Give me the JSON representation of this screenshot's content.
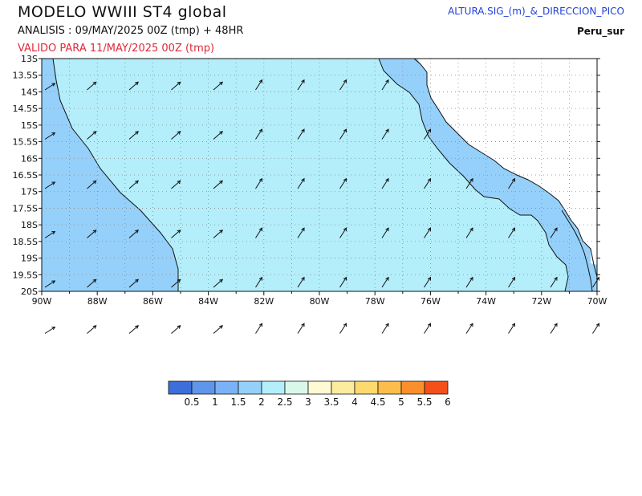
{
  "header": {
    "title": "MODELO  WWIII  ST4  global",
    "analysis": "ANALISIS : 09/MAY/2025 00Z   (tmp) + 48HR",
    "valid": "VALIDO PARA   11/MAY/2025 00Z   (tmp)",
    "variable": "ALTURA.SIG_(m)_&_DIRECCION_PICO",
    "region": "Peru_sur"
  },
  "axes": {
    "lat_labels": [
      "13S",
      "13.5S",
      "14S",
      "14.5S",
      "15S",
      "15.5S",
      "16S",
      "16.5S",
      "17S",
      "17.5S",
      "18S",
      "18.5S",
      "19S",
      "19.5S",
      "20S"
    ],
    "lon_labels": [
      "90W",
      "88W",
      "86W",
      "84W",
      "82W",
      "80W",
      "78W",
      "76W",
      "74W",
      "72W",
      "70W"
    ]
  },
  "map": {
    "extent": {
      "lon_min": -90,
      "lon_max": -70,
      "lat_min": -20,
      "lat_max": -13
    },
    "field_dominant_range_m": "2 - 2.5",
    "nearshore_range_m": "1.5 - 2",
    "peak_direction": "towards NE"
  },
  "colorbar": {
    "labels": [
      "0.5",
      "1",
      "1.5",
      "2",
      "2.5",
      "3",
      "3.5",
      "4",
      "4.5",
      "5",
      "5.5",
      "6"
    ],
    "colors": [
      "#3c6fd9",
      "#5f95ea",
      "#79b2f7",
      "#95d0fb",
      "#b3eefa",
      "#d9f8ea",
      "#fefad3",
      "#fdeb9e",
      "#fdd96e",
      "#fdbd4c",
      "#fb8f2c",
      "#f55019"
    ]
  },
  "colors": {
    "ocean_main": "#b3eefa",
    "ocean_near": "#95d0fb",
    "land": "#ffffff",
    "coast": "#111111"
  }
}
